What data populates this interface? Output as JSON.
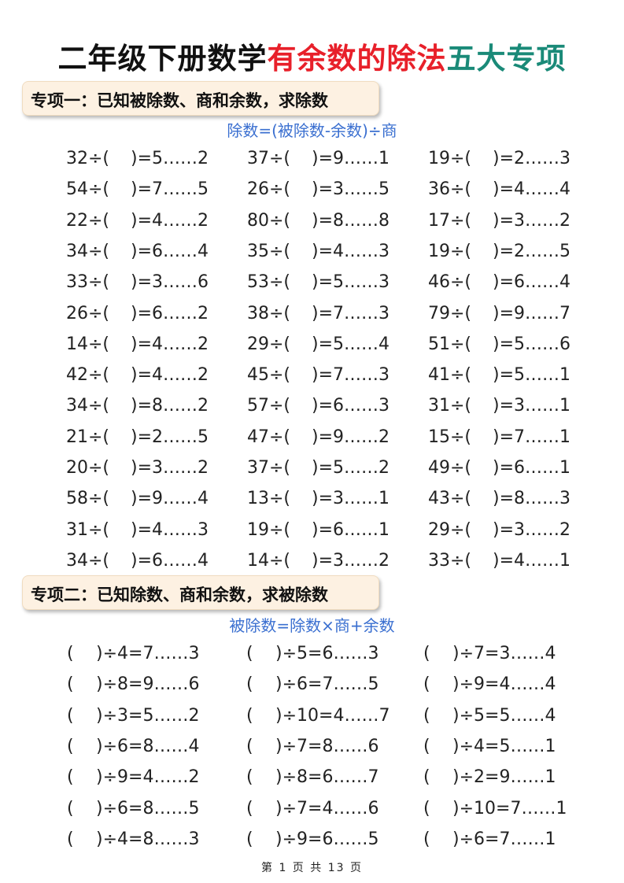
{
  "title": {
    "part1": "二年级下册数学",
    "part2": "有余数的除法",
    "part3": "五大专项"
  },
  "colors": {
    "title_black": "#111111",
    "title_red": "#e8202a",
    "title_green": "#1a8a78",
    "formula_blue": "#3a6fd0",
    "header_bg": "#fdf1e2"
  },
  "section1": {
    "heading": "专项一：已知被除数、商和余数，求除数",
    "formula": "除数=(被除数-余数)÷商",
    "rows": [
      [
        {
          "l": "32÷(",
          "r": ")=5……2"
        },
        {
          "l": "37÷(",
          "r": ")=9……1"
        },
        {
          "l": "19÷(",
          "r": ")=2……3"
        }
      ],
      [
        {
          "l": "54÷(",
          "r": ")=7……5"
        },
        {
          "l": "26÷(",
          "r": ")=3……5"
        },
        {
          "l": "36÷(",
          "r": ")=4……4"
        }
      ],
      [
        {
          "l": "22÷(",
          "r": ")=4……2"
        },
        {
          "l": "80÷(",
          "r": ")=8……8"
        },
        {
          "l": "17÷(",
          "r": ")=3……2"
        }
      ],
      [
        {
          "l": "34÷(",
          "r": ")=6……4"
        },
        {
          "l": "35÷(",
          "r": ")=4……3"
        },
        {
          "l": "19÷(",
          "r": ")=2……5"
        }
      ],
      [
        {
          "l": "33÷(",
          "r": ")=3……6"
        },
        {
          "l": "53÷(",
          "r": ")=5……3"
        },
        {
          "l": "46÷(",
          "r": ")=6……4"
        }
      ],
      [
        {
          "l": "26÷(",
          "r": ")=6……2"
        },
        {
          "l": "38÷(",
          "r": ")=7……3"
        },
        {
          "l": "79÷(",
          "r": ")=9……7"
        }
      ],
      [
        {
          "l": "14÷(",
          "r": ")=4……2"
        },
        {
          "l": "29÷(",
          "r": ")=5……4"
        },
        {
          "l": "51÷(",
          "r": ")=5……6"
        }
      ],
      [
        {
          "l": "42÷(",
          "r": ")=4……2"
        },
        {
          "l": "45÷(",
          "r": ")=7……3"
        },
        {
          "l": "41÷(",
          "r": ")=5……1"
        }
      ],
      [
        {
          "l": "34÷(",
          "r": ")=8……2"
        },
        {
          "l": "57÷(",
          "r": ")=6……3"
        },
        {
          "l": "31÷(",
          "r": ")=3……1"
        }
      ],
      [
        {
          "l": "21÷(",
          "r": ")=2……5"
        },
        {
          "l": "47÷(",
          "r": ")=9……2"
        },
        {
          "l": "15÷(",
          "r": ")=7……1"
        }
      ],
      [
        {
          "l": "20÷(",
          "r": ")=3……2"
        },
        {
          "l": "37÷(",
          "r": ")=5……2"
        },
        {
          "l": "49÷(",
          "r": ")=6……1"
        }
      ],
      [
        {
          "l": "58÷(",
          "r": ")=9……4"
        },
        {
          "l": "13÷(",
          "r": ")=3……1"
        },
        {
          "l": "43÷(",
          "r": ")=8……3"
        }
      ],
      [
        {
          "l": "31÷(",
          "r": ")=4……3"
        },
        {
          "l": "19÷(",
          "r": ")=6……1"
        },
        {
          "l": "29÷(",
          "r": ")=3……2"
        }
      ],
      [
        {
          "l": "34÷(",
          "r": ")=6……4"
        },
        {
          "l": "14÷(",
          "r": ")=3……2"
        },
        {
          "l": "33÷(",
          "r": ")=4……1"
        }
      ]
    ]
  },
  "section2": {
    "heading": "专项二：已知除数、商和余数，求被除数",
    "formula": "被除数=除数×商+余数",
    "rows": [
      [
        {
          "l": "(",
          "r": ")÷4=7……3"
        },
        {
          "l": "(",
          "r": ")÷5=6……3"
        },
        {
          "l": "(",
          "r": ")÷7=3……4"
        }
      ],
      [
        {
          "l": "(",
          "r": ")÷8=9……6"
        },
        {
          "l": "(",
          "r": ")÷6=7……5"
        },
        {
          "l": "(",
          "r": ")÷9=4……4"
        }
      ],
      [
        {
          "l": "(",
          "r": ")÷3=5……2"
        },
        {
          "l": "(",
          "r": ")÷10=4……7"
        },
        {
          "l": "(",
          "r": ")÷5=5……4"
        }
      ],
      [
        {
          "l": "(",
          "r": ")÷6=8……4"
        },
        {
          "l": "(",
          "r": ")÷7=8……6"
        },
        {
          "l": "(",
          "r": ")÷4=5……1"
        }
      ],
      [
        {
          "l": "(",
          "r": ")÷9=4……2"
        },
        {
          "l": "(",
          "r": ")÷8=6……7"
        },
        {
          "l": "(",
          "r": ")÷2=9……1"
        }
      ],
      [
        {
          "l": "(",
          "r": ")÷6=8……5"
        },
        {
          "l": "(",
          "r": ")÷7=4……6"
        },
        {
          "l": "(",
          "r": ")÷10=7……1"
        }
      ],
      [
        {
          "l": "(",
          "r": ")÷4=8……3"
        },
        {
          "l": "(",
          "r": ")÷9=6……5"
        },
        {
          "l": "(",
          "r": ")÷6=7……1"
        }
      ]
    ]
  },
  "footer": "第 1 页 共 13 页"
}
